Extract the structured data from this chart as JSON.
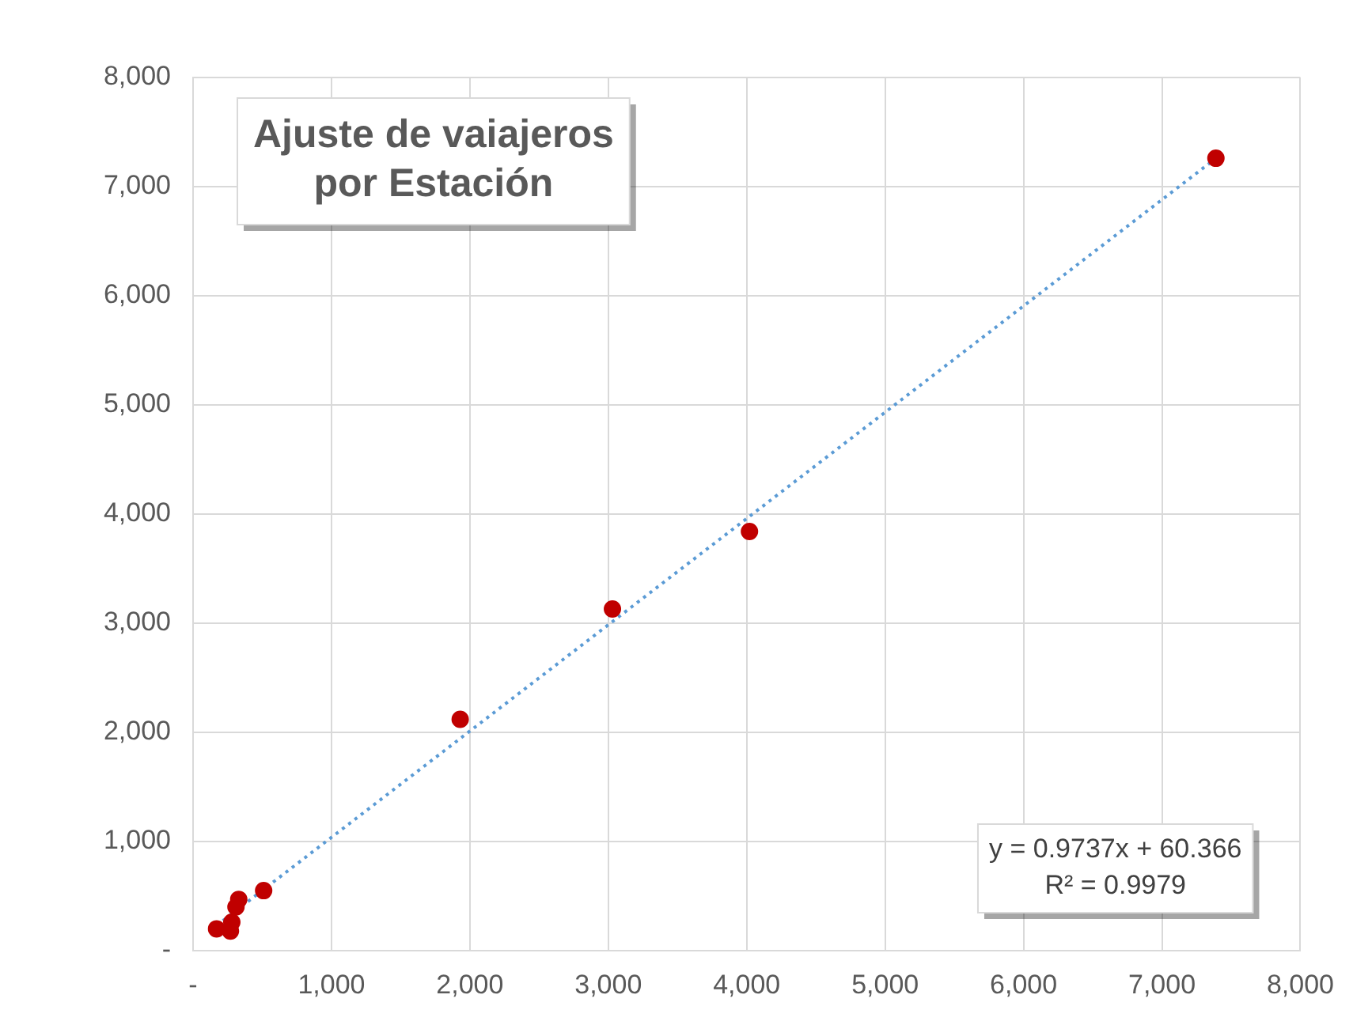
{
  "chart_data": {
    "type": "scatter",
    "title": "Ajuste de vaiajeros por Estación",
    "annotations": [
      "y = 0.9737x + 60.366",
      "R² = 0.9979"
    ],
    "series": [
      {
        "type": "scatter",
        "color": "#c00000",
        "x": [
          170,
          270,
          280,
          310,
          330,
          510,
          1930,
          3030,
          4020,
          7390
        ],
        "values": [
          200,
          180,
          260,
          400,
          470,
          550,
          2120,
          3130,
          3840,
          7260
        ]
      },
      {
        "type": "line",
        "color": "#5b9bd5",
        "line_style": "dotted",
        "marker": "none",
        "x": [
          170,
          7390
        ],
        "values": [
          230,
          7260
        ]
      }
    ],
    "xlim": [
      0,
      8000
    ],
    "ylim": [
      0,
      8000
    ],
    "xticks": [
      {
        "value": 0,
        "label": "-"
      },
      {
        "value": 1000,
        "label": "1,000"
      },
      {
        "value": 2000,
        "label": "2,000"
      },
      {
        "value": 3000,
        "label": "3,000"
      },
      {
        "value": 4000,
        "label": "4,000"
      },
      {
        "value": 5000,
        "label": "5,000"
      },
      {
        "value": 6000,
        "label": "6,000"
      },
      {
        "value": 7000,
        "label": "7,000"
      },
      {
        "value": 8000,
        "label": "8,000"
      }
    ],
    "yticks": [
      {
        "value": 0,
        "label": "-"
      },
      {
        "value": 1000,
        "label": "1,000"
      },
      {
        "value": 2000,
        "label": "2,000"
      },
      {
        "value": 3000,
        "label": "3,000"
      },
      {
        "value": 4000,
        "label": "4,000"
      },
      {
        "value": 5000,
        "label": "5,000"
      },
      {
        "value": 6000,
        "label": "6,000"
      },
      {
        "value": 7000,
        "label": "7,000"
      },
      {
        "value": 8000,
        "label": "8,000"
      }
    ],
    "grid": true,
    "legend": false,
    "marker": "circle"
  }
}
